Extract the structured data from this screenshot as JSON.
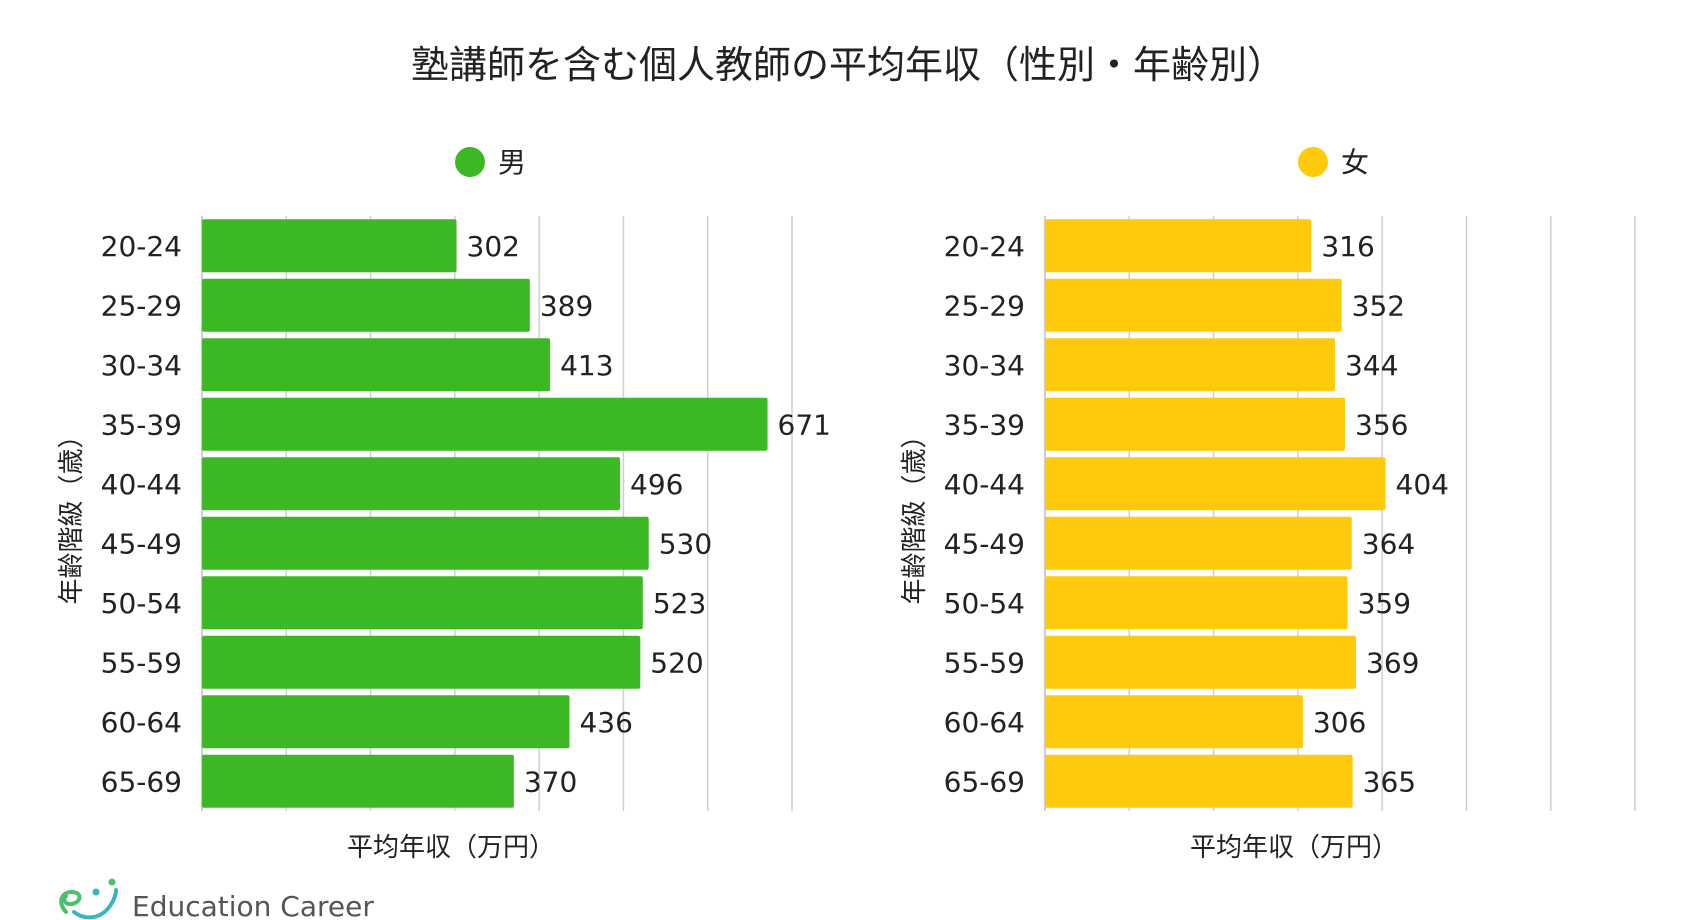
{
  "title": "塾講師を含む個人教師の平均年収（性別・年齢別）",
  "colors": {
    "male": "#3bb824",
    "female": "#ffc90c",
    "grid": "#cfcfcf",
    "brand_green": "#4cc06a",
    "brand_teal": "#37b5c4"
  },
  "chart_data": [
    {
      "type": "bar",
      "orientation": "horizontal",
      "legend": "男",
      "color": "#3bb824",
      "categories": [
        "20-24",
        "25-29",
        "30-34",
        "35-39",
        "40-44",
        "45-49",
        "50-54",
        "55-59",
        "60-64",
        "65-69"
      ],
      "values": [
        302,
        389,
        413,
        671,
        496,
        530,
        523,
        520,
        436,
        370
      ],
      "xlabel": "平均年収（万円）",
      "ylabel": "年齢階級（歳）",
      "xlim": [
        0,
        700
      ],
      "grid": true,
      "legend_position": "top-center"
    },
    {
      "type": "bar",
      "orientation": "horizontal",
      "legend": "女",
      "color": "#ffc90c",
      "categories": [
        "20-24",
        "25-29",
        "30-34",
        "35-39",
        "40-44",
        "45-49",
        "50-54",
        "55-59",
        "60-64",
        "65-69"
      ],
      "values": [
        316,
        352,
        344,
        356,
        404,
        364,
        359,
        369,
        306,
        365
      ],
      "xlabel": "平均年収（万円）",
      "ylabel": "年齢階級（歳）",
      "xlim": [
        0,
        700
      ],
      "grid": true,
      "legend_position": "top-center"
    }
  ],
  "brand": {
    "name": "Education Career",
    "icon": "education-career-logo-icon"
  }
}
